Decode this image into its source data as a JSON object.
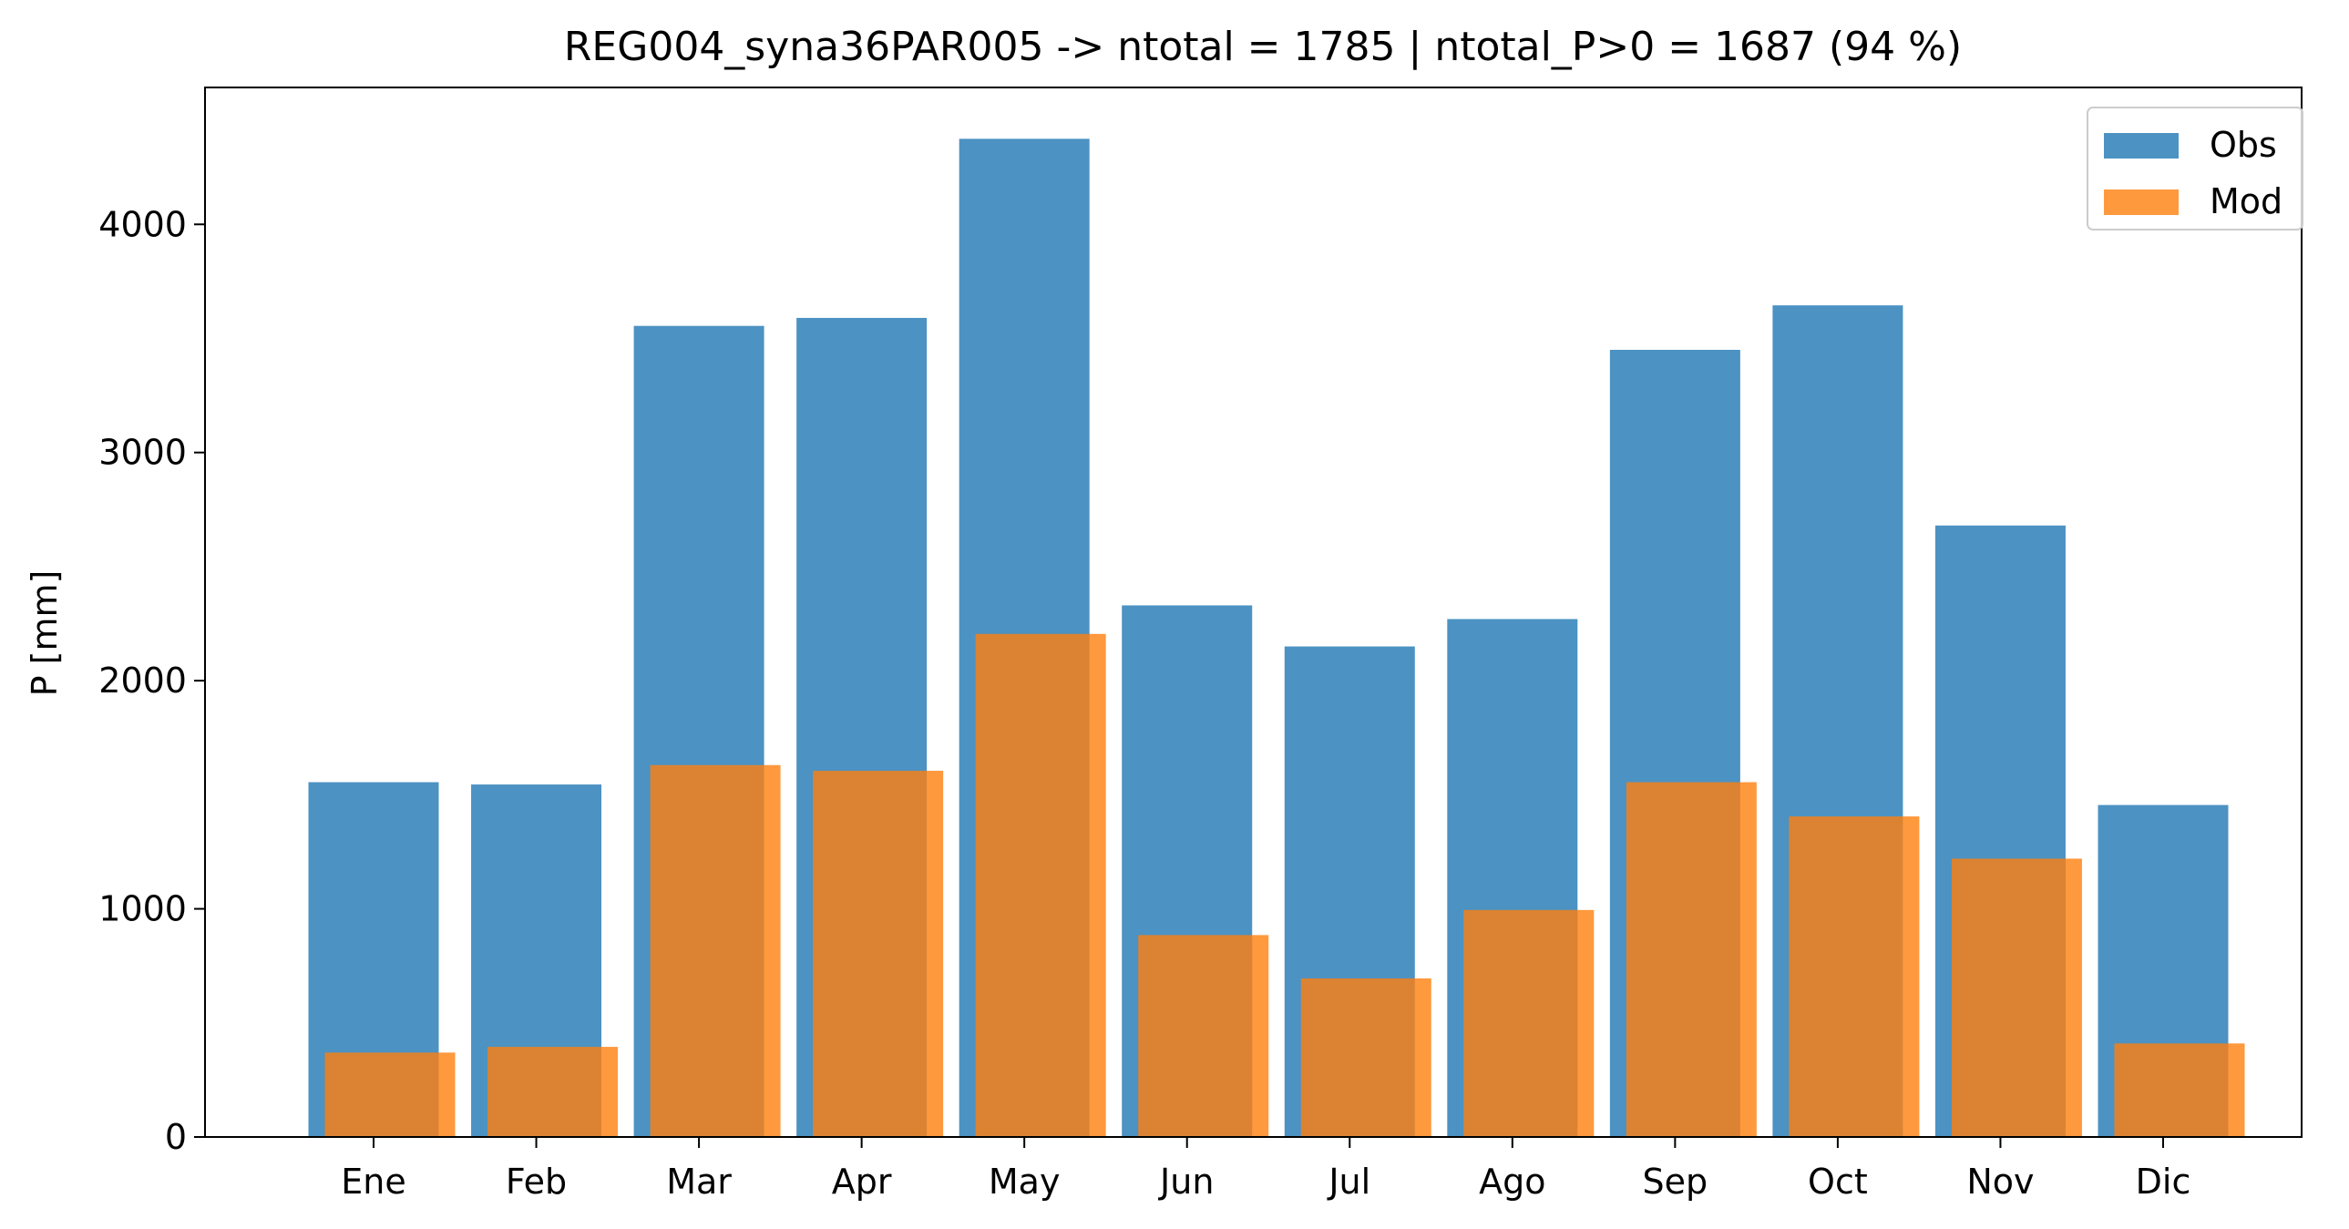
{
  "chart_data": {
    "type": "bar",
    "title": "REG004_syna36PAR005 -> ntotal = 1785 | ntotal_P>0 = 1687 (94 %)",
    "xlabel": "",
    "ylabel": "P [mm]",
    "categories": [
      "Ene",
      "Feb",
      "Mar",
      "Apr",
      "May",
      "Jun",
      "Jul",
      "Ago",
      "Sep",
      "Oct",
      "Nov",
      "Dic"
    ],
    "series": [
      {
        "name": "Obs",
        "color": "#1f77b4",
        "opacity": 0.8,
        "values": [
          1555,
          1545,
          3555,
          3590,
          4375,
          2330,
          2150,
          2270,
          3450,
          3645,
          2680,
          1455
        ]
      },
      {
        "name": "Mod",
        "color": "#ff7f0e",
        "opacity": 0.8,
        "values": [
          370,
          395,
          1630,
          1605,
          2205,
          885,
          695,
          995,
          1555,
          1405,
          1220,
          410
        ]
      }
    ],
    "ylim": [
      0,
      4600
    ],
    "yticks": [
      0,
      1000,
      2000,
      3000,
      4000
    ],
    "grid": false,
    "legend_position": "top-right"
  }
}
